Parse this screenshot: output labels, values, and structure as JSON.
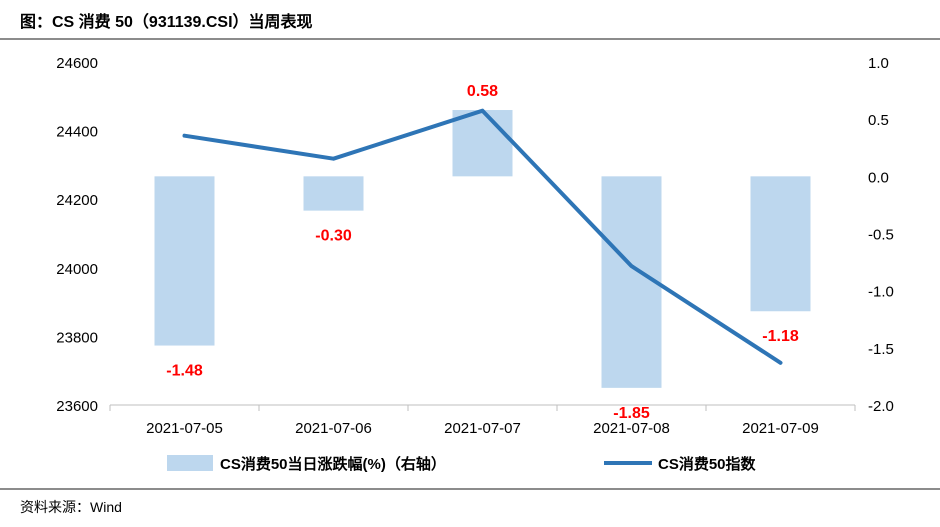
{
  "title": "图：CS 消费 50（931139.CSI）当周表现",
  "source": "资料来源：Wind",
  "chart_data": {
    "type": "bar+line",
    "categories": [
      "2021-07-05",
      "2021-07-06",
      "2021-07-07",
      "2021-07-08",
      "2021-07-09"
    ],
    "series": [
      {
        "name": "CS消费50当日涨跌幅(%)（右轴）",
        "type": "bar",
        "axis": "right",
        "values": [
          -1.48,
          -0.3,
          0.58,
          -1.85,
          -1.18
        ],
        "labels": [
          "-1.48",
          "-0.30",
          "0.58",
          "-1.85",
          "-1.18"
        ],
        "color": "#bdd7ee"
      },
      {
        "name": "CS消费50指数",
        "type": "line",
        "axis": "left",
        "values": [
          24385,
          24318,
          24458,
          24005,
          23723
        ],
        "color": "#2e75b6"
      }
    ],
    "y_left": {
      "range": [
        23600,
        24600
      ],
      "ticks": [
        "24600",
        "24400",
        "24200",
        "24000",
        "23800",
        "23600"
      ]
    },
    "y_right": {
      "range": [
        -2.0,
        1.0
      ],
      "ticks": [
        "1.0",
        "0.5",
        "0.0",
        "-0.5",
        "-1.0",
        "-1.5",
        "-2.0"
      ]
    },
    "grid": false,
    "legend": "bottom"
  }
}
